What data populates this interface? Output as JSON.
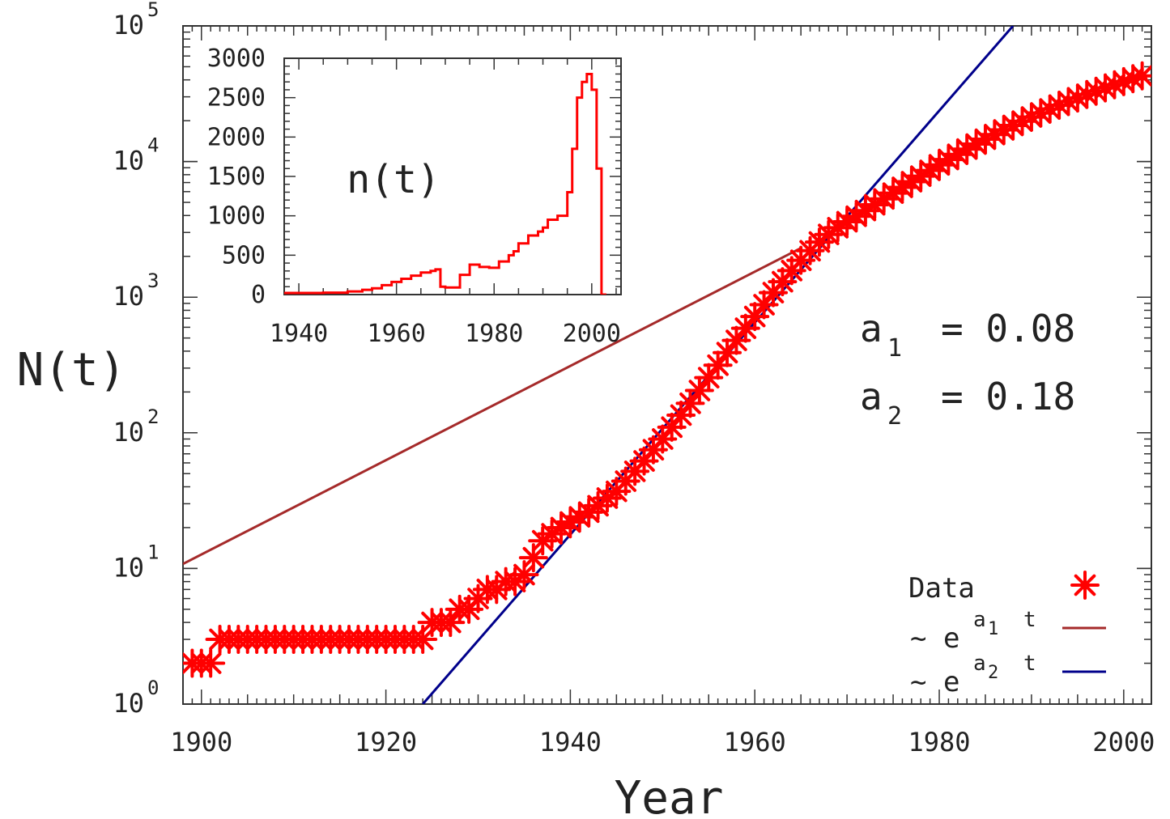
{
  "chart_data": [
    {
      "type": "scatter",
      "title": "",
      "xlabel": "Year",
      "ylabel": "N(t)",
      "xlim": [
        1898,
        2003
      ],
      "ylim": [
        1,
        100000
      ],
      "yscale": "log",
      "xticks": [
        "1900",
        "1920",
        "1940",
        "1960",
        "1980",
        "2000"
      ],
      "yticks": [
        {
          "base": "10",
          "exp": "0"
        },
        {
          "base": "10",
          "exp": "1"
        },
        {
          "base": "10",
          "exp": "2"
        },
        {
          "base": "10",
          "exp": "3"
        },
        {
          "base": "10",
          "exp": "4"
        },
        {
          "base": "10",
          "exp": "5"
        }
      ],
      "series": [
        {
          "name": "Data",
          "kind": "markers",
          "marker": "asterisk",
          "color": "#ff0000",
          "x": [
            1899,
            1900,
            1901,
            1902,
            1903,
            1904,
            1905,
            1906,
            1907,
            1908,
            1909,
            1910,
            1911,
            1912,
            1913,
            1914,
            1915,
            1916,
            1917,
            1918,
            1919,
            1920,
            1921,
            1922,
            1923,
            1924,
            1925,
            1926,
            1927,
            1928,
            1929,
            1930,
            1931,
            1932,
            1933,
            1934,
            1935,
            1936,
            1937,
            1938,
            1939,
            1940,
            1941,
            1942,
            1943,
            1944,
            1945,
            1946,
            1947,
            1948,
            1949,
            1950,
            1951,
            1952,
            1953,
            1954,
            1955,
            1956,
            1957,
            1958,
            1959,
            1960,
            1961,
            1962,
            1963,
            1964,
            1965,
            1966,
            1967,
            1968,
            1969,
            1970,
            1971,
            1972,
            1973,
            1974,
            1975,
            1976,
            1977,
            1978,
            1979,
            1980,
            1981,
            1982,
            1983,
            1984,
            1985,
            1986,
            1987,
            1988,
            1989,
            1990,
            1991,
            1992,
            1993,
            1994,
            1995,
            1996,
            1997,
            1998,
            1999,
            2000,
            2001,
            2002
          ],
          "y": [
            2,
            2,
            2,
            3,
            3,
            3,
            3,
            3,
            3,
            3,
            3,
            3,
            3,
            3,
            3,
            3,
            3,
            3,
            3,
            3,
            3,
            3,
            3,
            3,
            3,
            3,
            4,
            4,
            4,
            5,
            5,
            6,
            7,
            7,
            8,
            8,
            9,
            12,
            16,
            18,
            20,
            22,
            24,
            26,
            29,
            33,
            37,
            44,
            52,
            62,
            75,
            90,
            110,
            135,
            165,
            205,
            255,
            315,
            390,
            480,
            590,
            720,
            880,
            1080,
            1300,
            1570,
            1870,
            2200,
            2550,
            2900,
            3250,
            3600,
            3950,
            4350,
            4800,
            5300,
            5850,
            6450,
            7100,
            7800,
            8600,
            9450,
            10350,
            11300,
            12350,
            13450,
            14600,
            15800,
            17100,
            18450,
            19850,
            21300,
            22800,
            24400,
            26000,
            27700,
            29400,
            31200,
            33000,
            34900,
            36800,
            38800,
            40800,
            42800
          ]
        },
        {
          "name": "~ e^{a1 t}",
          "kind": "line",
          "color": "#a52a2a",
          "x": [
            1898,
            1965
          ],
          "y": [
            10.8,
            2300
          ]
        },
        {
          "name": "~ e^{a2 t}",
          "kind": "line",
          "color": "#00008b",
          "x": [
            1924,
            1988
          ],
          "y": [
            1,
            100000
          ]
        }
      ],
      "annotations": [
        {
          "base": "a",
          "sub": "1",
          "text": "= 0.08"
        },
        {
          "base": "a",
          "sub": "2",
          "text": "= 0.18"
        }
      ],
      "legend": {
        "placement": "bottom-right",
        "entries": [
          {
            "text": "Data"
          },
          {
            "prefix": "~ e",
            "sup_base": "a",
            "sup_sub": "1",
            "sup_t": "t"
          },
          {
            "prefix": "~ e",
            "sup_base": "a",
            "sup_sub": "2",
            "sup_t": "t"
          }
        ]
      }
    },
    {
      "type": "line",
      "title": "n(t)",
      "xlim": [
        1937,
        2006
      ],
      "ylim": [
        0,
        3000
      ],
      "xticks": [
        "1940",
        "1960",
        "1980",
        "2000"
      ],
      "yticks": [
        "0",
        "500",
        "1000",
        "1500",
        "2000",
        "2500",
        "3000"
      ],
      "series": [
        {
          "name": "n(t)",
          "kind": "step",
          "color": "#ff0000",
          "x": [
            1937,
            1940,
            1945,
            1950,
            1953,
            1955,
            1957,
            1959,
            1961,
            1963,
            1965,
            1967,
            1968,
            1969,
            1970,
            1971,
            1973,
            1975,
            1977,
            1979,
            1981,
            1983,
            1984,
            1985,
            1987,
            1989,
            1990,
            1991,
            1993,
            1995,
            1996,
            1997,
            1998,
            1999,
            2000,
            2001,
            2002,
            2003
          ],
          "y": [
            20,
            20,
            25,
            40,
            60,
            80,
            120,
            160,
            200,
            240,
            280,
            300,
            320,
            100,
            90,
            90,
            250,
            380,
            350,
            340,
            420,
            500,
            550,
            650,
            750,
            800,
            850,
            950,
            1000,
            1300,
            1850,
            2500,
            2700,
            2800,
            2600,
            1600,
            0,
            0
          ]
        }
      ]
    }
  ]
}
